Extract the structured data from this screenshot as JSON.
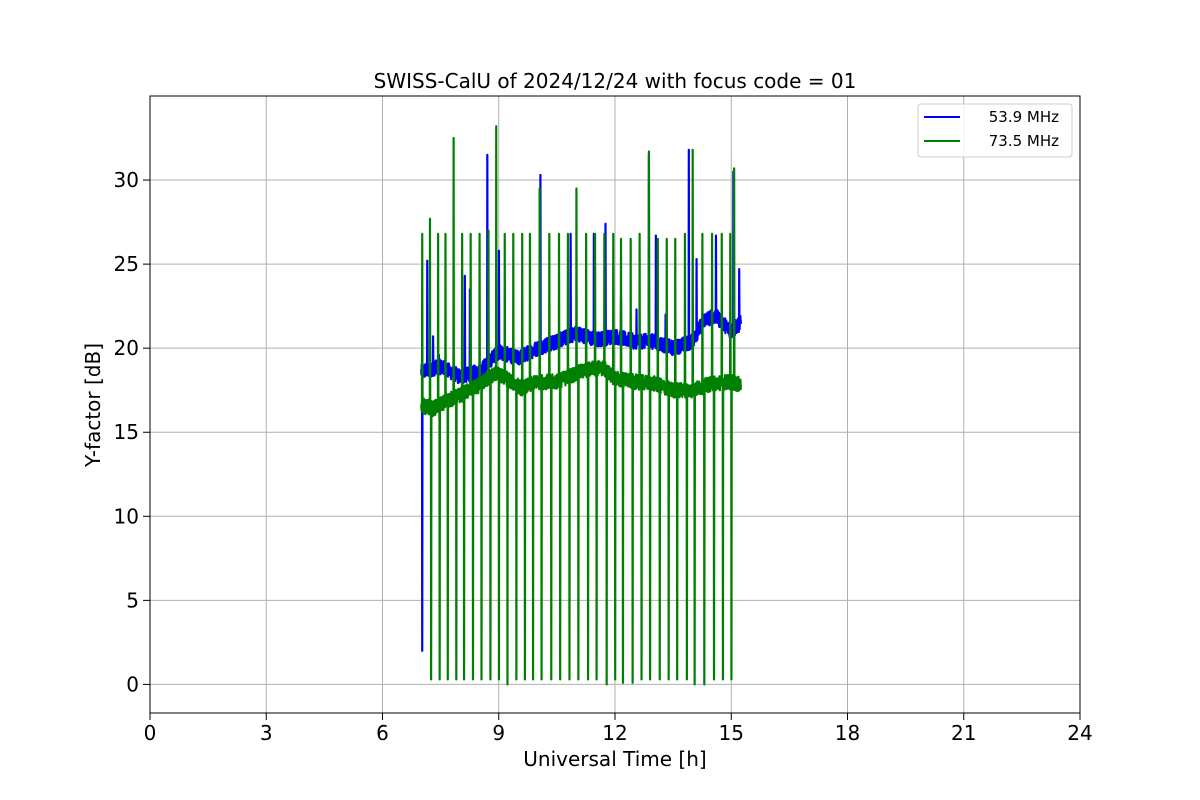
{
  "chart_data": {
    "type": "line",
    "title": "SWISS-CalU of 2024/12/24 with focus code = 01",
    "xlabel": "Universal Time [h]",
    "ylabel": "Y-factor [dB]",
    "xlim": [
      0,
      24
    ],
    "ylim": [
      -1.7,
      35
    ],
    "x_ticks": [
      "0",
      "3",
      "6",
      "9",
      "12",
      "15",
      "18",
      "21",
      "24"
    ],
    "y_ticks": [
      "0",
      "5",
      "10",
      "15",
      "20",
      "25",
      "30"
    ],
    "grid": true,
    "legend_position": "top-right",
    "series": [
      {
        "name": "53.9 MHz",
        "color": "#0000ff",
        "baseline": [
          [
            7.0,
            18.6
          ],
          [
            7.5,
            18.9
          ],
          [
            8.0,
            18.3
          ],
          [
            8.5,
            18.6
          ],
          [
            9.0,
            19.8
          ],
          [
            9.5,
            19.4
          ],
          [
            10.0,
            20.0
          ],
          [
            10.5,
            20.4
          ],
          [
            11.0,
            20.9
          ],
          [
            11.5,
            20.5
          ],
          [
            12.0,
            20.7
          ],
          [
            12.5,
            20.4
          ],
          [
            13.0,
            20.4
          ],
          [
            13.5,
            20.0
          ],
          [
            14.0,
            20.4
          ],
          [
            14.3,
            21.7
          ],
          [
            14.6,
            21.9
          ],
          [
            15.0,
            21.0
          ],
          [
            15.25,
            21.5
          ]
        ],
        "spikes": [
          [
            7.02,
            2.0
          ],
          [
            7.15,
            25.2
          ],
          [
            7.3,
            20.7
          ],
          [
            7.45,
            19.6
          ],
          [
            8.12,
            24.3
          ],
          [
            8.25,
            23.5
          ],
          [
            8.7,
            31.5
          ],
          [
            9.0,
            25.8
          ],
          [
            9.4,
            19.8
          ],
          [
            10.07,
            30.3
          ],
          [
            10.5,
            20.8
          ],
          [
            10.85,
            26.8
          ],
          [
            11.45,
            26.8
          ],
          [
            11.75,
            27.4
          ],
          [
            12.15,
            23.0
          ],
          [
            12.55,
            22.3
          ],
          [
            12.87,
            31.5
          ],
          [
            13.05,
            26.7
          ],
          [
            13.3,
            22.0
          ],
          [
            13.65,
            20.3
          ],
          [
            13.9,
            31.8
          ],
          [
            14.1,
            25.3
          ],
          [
            14.6,
            26.7
          ],
          [
            15.05,
            30.5
          ],
          [
            15.2,
            24.7
          ]
        ]
      },
      {
        "name": "73.5 MHz",
        "color": "#008000",
        "baseline": [
          [
            7.0,
            16.6
          ],
          [
            7.3,
            16.4
          ],
          [
            7.6,
            16.8
          ],
          [
            8.0,
            17.2
          ],
          [
            8.5,
            17.8
          ],
          [
            8.9,
            18.5
          ],
          [
            9.2,
            18.2
          ],
          [
            9.6,
            17.6
          ],
          [
            10.0,
            18.0
          ],
          [
            10.5,
            18.0
          ],
          [
            11.0,
            18.5
          ],
          [
            11.4,
            18.8
          ],
          [
            11.7,
            18.8
          ],
          [
            12.0,
            18.2
          ],
          [
            12.5,
            18.0
          ],
          [
            13.0,
            17.9
          ],
          [
            13.5,
            17.5
          ],
          [
            14.0,
            17.5
          ],
          [
            14.5,
            17.9
          ],
          [
            15.0,
            18.0
          ],
          [
            15.25,
            17.8
          ]
        ],
        "spikes": [
          [
            7.02,
            26.8
          ],
          [
            7.22,
            27.7
          ],
          [
            7.43,
            26.8
          ],
          [
            7.62,
            26.8
          ],
          [
            7.83,
            32.5
          ],
          [
            8.05,
            26.8
          ],
          [
            8.27,
            26.8
          ],
          [
            8.5,
            26.8
          ],
          [
            8.73,
            27.0
          ],
          [
            8.93,
            33.2
          ],
          [
            9.15,
            26.8
          ],
          [
            9.37,
            26.8
          ],
          [
            9.6,
            26.8
          ],
          [
            9.8,
            26.8
          ],
          [
            10.05,
            29.5
          ],
          [
            10.3,
            26.8
          ],
          [
            10.55,
            26.8
          ],
          [
            10.78,
            26.8
          ],
          [
            11.0,
            29.5
          ],
          [
            11.25,
            26.8
          ],
          [
            11.48,
            26.8
          ],
          [
            11.72,
            26.8
          ],
          [
            11.95,
            26.8
          ],
          [
            12.15,
            26.5
          ],
          [
            12.4,
            26.5
          ],
          [
            12.63,
            26.8
          ],
          [
            12.87,
            31.7
          ],
          [
            13.1,
            26.5
          ],
          [
            13.33,
            26.5
          ],
          [
            13.55,
            26.5
          ],
          [
            13.8,
            26.8
          ],
          [
            14.0,
            31.8
          ],
          [
            14.25,
            26.8
          ],
          [
            14.5,
            26.8
          ],
          [
            14.75,
            26.8
          ],
          [
            14.97,
            26.8
          ],
          [
            15.07,
            30.7
          ]
        ],
        "dips": [
          [
            7.25,
            0.3
          ],
          [
            7.47,
            0.3
          ],
          [
            7.68,
            0.3
          ],
          [
            7.9,
            0.3
          ],
          [
            8.1,
            0.3
          ],
          [
            8.33,
            0.3
          ],
          [
            8.55,
            0.3
          ],
          [
            8.78,
            0.3
          ],
          [
            9.0,
            0.3
          ],
          [
            9.22,
            0.0
          ],
          [
            9.45,
            0.3
          ],
          [
            9.67,
            0.3
          ],
          [
            9.88,
            0.3
          ],
          [
            10.1,
            0.3
          ],
          [
            10.35,
            0.3
          ],
          [
            10.58,
            0.3
          ],
          [
            10.82,
            0.3
          ],
          [
            11.05,
            0.3
          ],
          [
            11.3,
            0.3
          ],
          [
            11.52,
            0.3
          ],
          [
            11.78,
            0.0
          ],
          [
            12.0,
            0.3
          ],
          [
            12.2,
            0.1
          ],
          [
            12.45,
            0.1
          ],
          [
            12.68,
            0.3
          ],
          [
            12.9,
            0.3
          ],
          [
            13.15,
            0.3
          ],
          [
            13.38,
            0.3
          ],
          [
            13.6,
            0.3
          ],
          [
            13.85,
            0.3
          ],
          [
            14.05,
            0.0
          ],
          [
            14.3,
            0.0
          ],
          [
            14.55,
            0.3
          ],
          [
            14.78,
            0.3
          ],
          [
            15.0,
            0.3
          ]
        ]
      }
    ]
  }
}
